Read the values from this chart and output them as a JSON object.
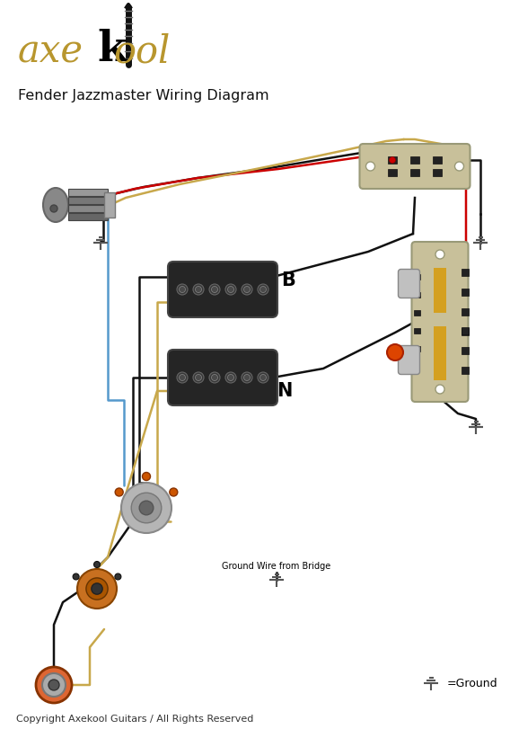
{
  "title": "Fender Jazzmaster Wiring Diagram",
  "copyright": "Copyright Axekool Guitars / All Rights Reserved",
  "ground_label": "=Ground",
  "ground_wire_label": "Ground Wire from Bridge",
  "pickup_bridge_label": "B",
  "pickup_neck_label": "N",
  "bg_color": "#ffffff",
  "wire_black": "#111111",
  "wire_red": "#cc0000",
  "wire_blue": "#5599cc",
  "wire_tan": "#c8a84b",
  "ground_symbol_color": "#555555",
  "pickup_color": "#222222",
  "switch_plate_color": "#c8c09a",
  "pot_body_color": "#b0b0b0",
  "jack_orange": "#dd6633",
  "orange_dot_color": "#dd4400",
  "logo_gold": "#b8962e",
  "tremolo_dark": "#606060",
  "tremolo_light": "#aaaaaa",
  "selector_plate_color": "#c8c09a",
  "switch_knob_color": "#aaaaaa",
  "switch_yellow": "#d4a020"
}
